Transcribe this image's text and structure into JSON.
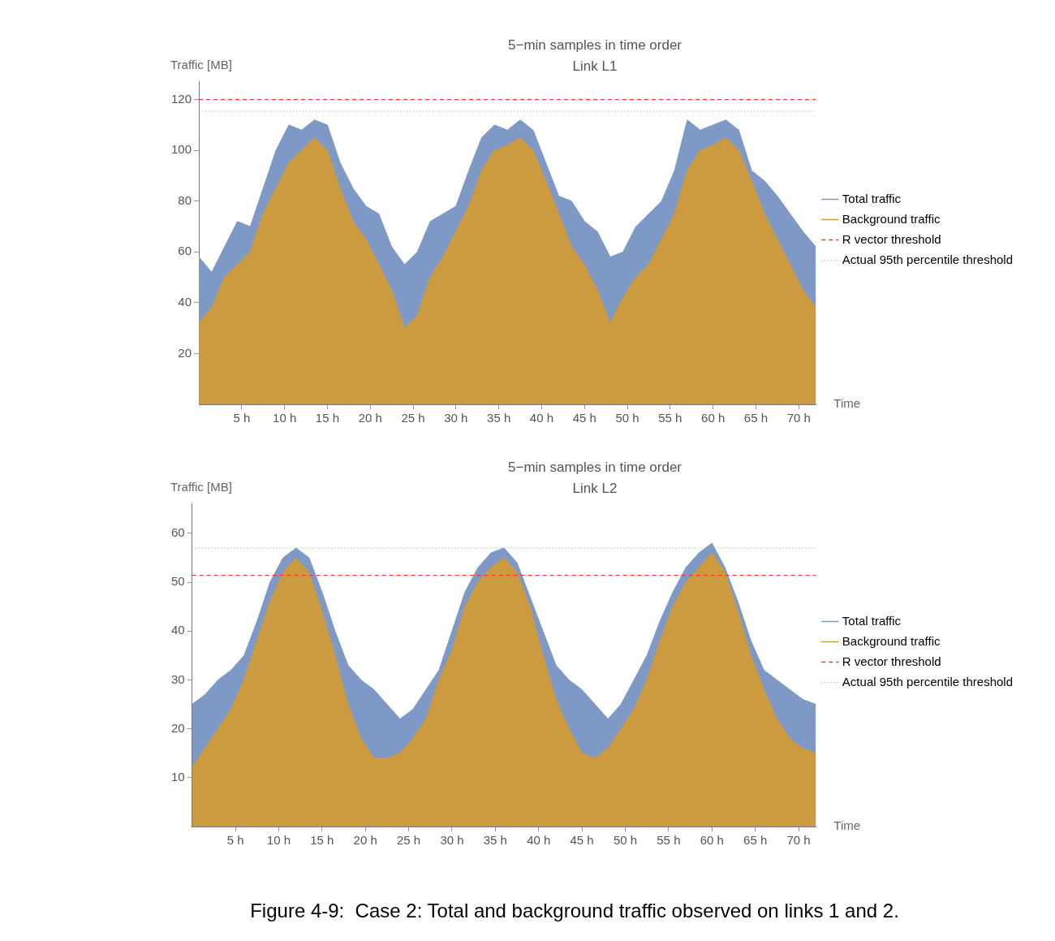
{
  "chart_data": [
    {
      "type": "area",
      "title": "5−min samples in time order",
      "subtitle": "Link L1",
      "xlabel": "Time",
      "ylabel": "Traffic [MB]",
      "legend": "right",
      "grid": false,
      "x": [
        0,
        1.5,
        3,
        4.5,
        6,
        7.5,
        9,
        10.5,
        12,
        13.5,
        15,
        16.5,
        18,
        19.5,
        21,
        22.5,
        24,
        25.5,
        27,
        28.5,
        30,
        31.5,
        33,
        34.5,
        36,
        37.5,
        39,
        40.5,
        42,
        43.5,
        45,
        46.5,
        48,
        49.5,
        51,
        52.5,
        54,
        55.5,
        57,
        58.5,
        60,
        61.5,
        63,
        64.5,
        66,
        67.5,
        69,
        70.5,
        72
      ],
      "xlim": [
        0,
        72
      ],
      "xticks": [
        {
          "value": 5,
          "label": "5 h"
        },
        {
          "value": 10,
          "label": "10 h"
        },
        {
          "value": 15,
          "label": "15 h"
        },
        {
          "value": 20,
          "label": "20 h"
        },
        {
          "value": 25,
          "label": "25 h"
        },
        {
          "value": 30,
          "label": "30 h"
        },
        {
          "value": 35,
          "label": "35 h"
        },
        {
          "value": 40,
          "label": "40 h"
        },
        {
          "value": 45,
          "label": "45 h"
        },
        {
          "value": 50,
          "label": "50 h"
        },
        {
          "value": 55,
          "label": "55 h"
        },
        {
          "value": 60,
          "label": "60 h"
        },
        {
          "value": 65,
          "label": "65 h"
        },
        {
          "value": 70,
          "label": "70 h"
        }
      ],
      "ylim": [
        0,
        127
      ],
      "yticks": [
        20,
        40,
        60,
        80,
        100,
        120
      ],
      "series": [
        {
          "name": "Total traffic",
          "color": "#7f99c6",
          "values": [
            58,
            52,
            62,
            72,
            70,
            85,
            100,
            110,
            108,
            112,
            110,
            95,
            85,
            78,
            75,
            62,
            55,
            60,
            72,
            75,
            78,
            92,
            105,
            110,
            108,
            112,
            108,
            95,
            82,
            80,
            72,
            68,
            58,
            60,
            70,
            75,
            80,
            92,
            112,
            108,
            110,
            112,
            108,
            92,
            88,
            82,
            75,
            68,
            62
          ]
        },
        {
          "name": "Background traffic",
          "color": "#cc9b40",
          "values": [
            32,
            38,
            50,
            55,
            60,
            75,
            85,
            95,
            100,
            105,
            100,
            85,
            72,
            65,
            55,
            45,
            30,
            35,
            50,
            58,
            68,
            78,
            92,
            100,
            102,
            105,
            100,
            88,
            75,
            62,
            55,
            45,
            32,
            42,
            50,
            55,
            65,
            75,
            92,
            100,
            102,
            105,
            100,
            88,
            75,
            65,
            55,
            45,
            38
          ]
        }
      ],
      "ref_lines": [
        {
          "axis": "y",
          "value": 120,
          "label": "R vector threshold",
          "color": "#ff3333",
          "line_style": "dashed"
        },
        {
          "axis": "y",
          "value": 115.5,
          "label": "Actual 95th percentile threshold",
          "color": "#66dd66",
          "line_style": "dotted"
        }
      ]
    },
    {
      "type": "area",
      "title": "5−min samples in time order",
      "subtitle": "Link L2",
      "xlabel": "Time",
      "ylabel": "Traffic [MB]",
      "legend": "right",
      "grid": false,
      "x": [
        0,
        1.5,
        3,
        4.5,
        6,
        7.5,
        9,
        10.5,
        12,
        13.5,
        15,
        16.5,
        18,
        19.5,
        21,
        22.5,
        24,
        25.5,
        27,
        28.5,
        30,
        31.5,
        33,
        34.5,
        36,
        37.5,
        39,
        40.5,
        42,
        43.5,
        45,
        46.5,
        48,
        49.5,
        51,
        52.5,
        54,
        55.5,
        57,
        58.5,
        60,
        61.5,
        63,
        64.5,
        66,
        67.5,
        69,
        70.5,
        72
      ],
      "xlim": [
        0,
        72
      ],
      "xticks": [
        {
          "value": 5,
          "label": "5 h"
        },
        {
          "value": 10,
          "label": "10 h"
        },
        {
          "value": 15,
          "label": "15 h"
        },
        {
          "value": 20,
          "label": "20 h"
        },
        {
          "value": 25,
          "label": "25 h"
        },
        {
          "value": 30,
          "label": "30 h"
        },
        {
          "value": 35,
          "label": "35 h"
        },
        {
          "value": 40,
          "label": "40 h"
        },
        {
          "value": 45,
          "label": "45 h"
        },
        {
          "value": 50,
          "label": "50 h"
        },
        {
          "value": 55,
          "label": "55 h"
        },
        {
          "value": 60,
          "label": "60 h"
        },
        {
          "value": 65,
          "label": "65 h"
        },
        {
          "value": 70,
          "label": "70 h"
        }
      ],
      "ylim": [
        0,
        66
      ],
      "yticks": [
        10,
        20,
        30,
        40,
        50,
        60
      ],
      "series": [
        {
          "name": "Total traffic",
          "color": "#7f99c6",
          "values": [
            25,
            27,
            30,
            32,
            35,
            42,
            50,
            55,
            57,
            55,
            48,
            40,
            33,
            30,
            28,
            25,
            22,
            24,
            28,
            32,
            40,
            48,
            53,
            56,
            57,
            54,
            47,
            40,
            33,
            30,
            28,
            25,
            22,
            25,
            30,
            35,
            42,
            48,
            53,
            56,
            58,
            53,
            46,
            38,
            32,
            30,
            28,
            26,
            25
          ]
        },
        {
          "name": "Background traffic",
          "color": "#cc9b40",
          "values": [
            12,
            16,
            20,
            24,
            30,
            38,
            46,
            52,
            55,
            52,
            44,
            35,
            25,
            18,
            14,
            14,
            15,
            18,
            22,
            30,
            36,
            45,
            50,
            53,
            55,
            52,
            45,
            35,
            26,
            20,
            15,
            14,
            16,
            20,
            24,
            30,
            38,
            45,
            50,
            53,
            56,
            52,
            44,
            35,
            28,
            22,
            18,
            16,
            15
          ]
        }
      ],
      "ref_lines": [
        {
          "axis": "y",
          "value": 51.4,
          "label": "R vector threshold",
          "color": "#ff3333",
          "line_style": "dashed"
        },
        {
          "axis": "y",
          "value": 57,
          "label": "Actual 95th percentile threshold",
          "color": "#66dd66",
          "line_style": "dotted"
        }
      ],
      "annotations": [
        "Figure 4-9:  Case 2: Total and background traffic observed on links 1 and 2."
      ]
    }
  ]
}
